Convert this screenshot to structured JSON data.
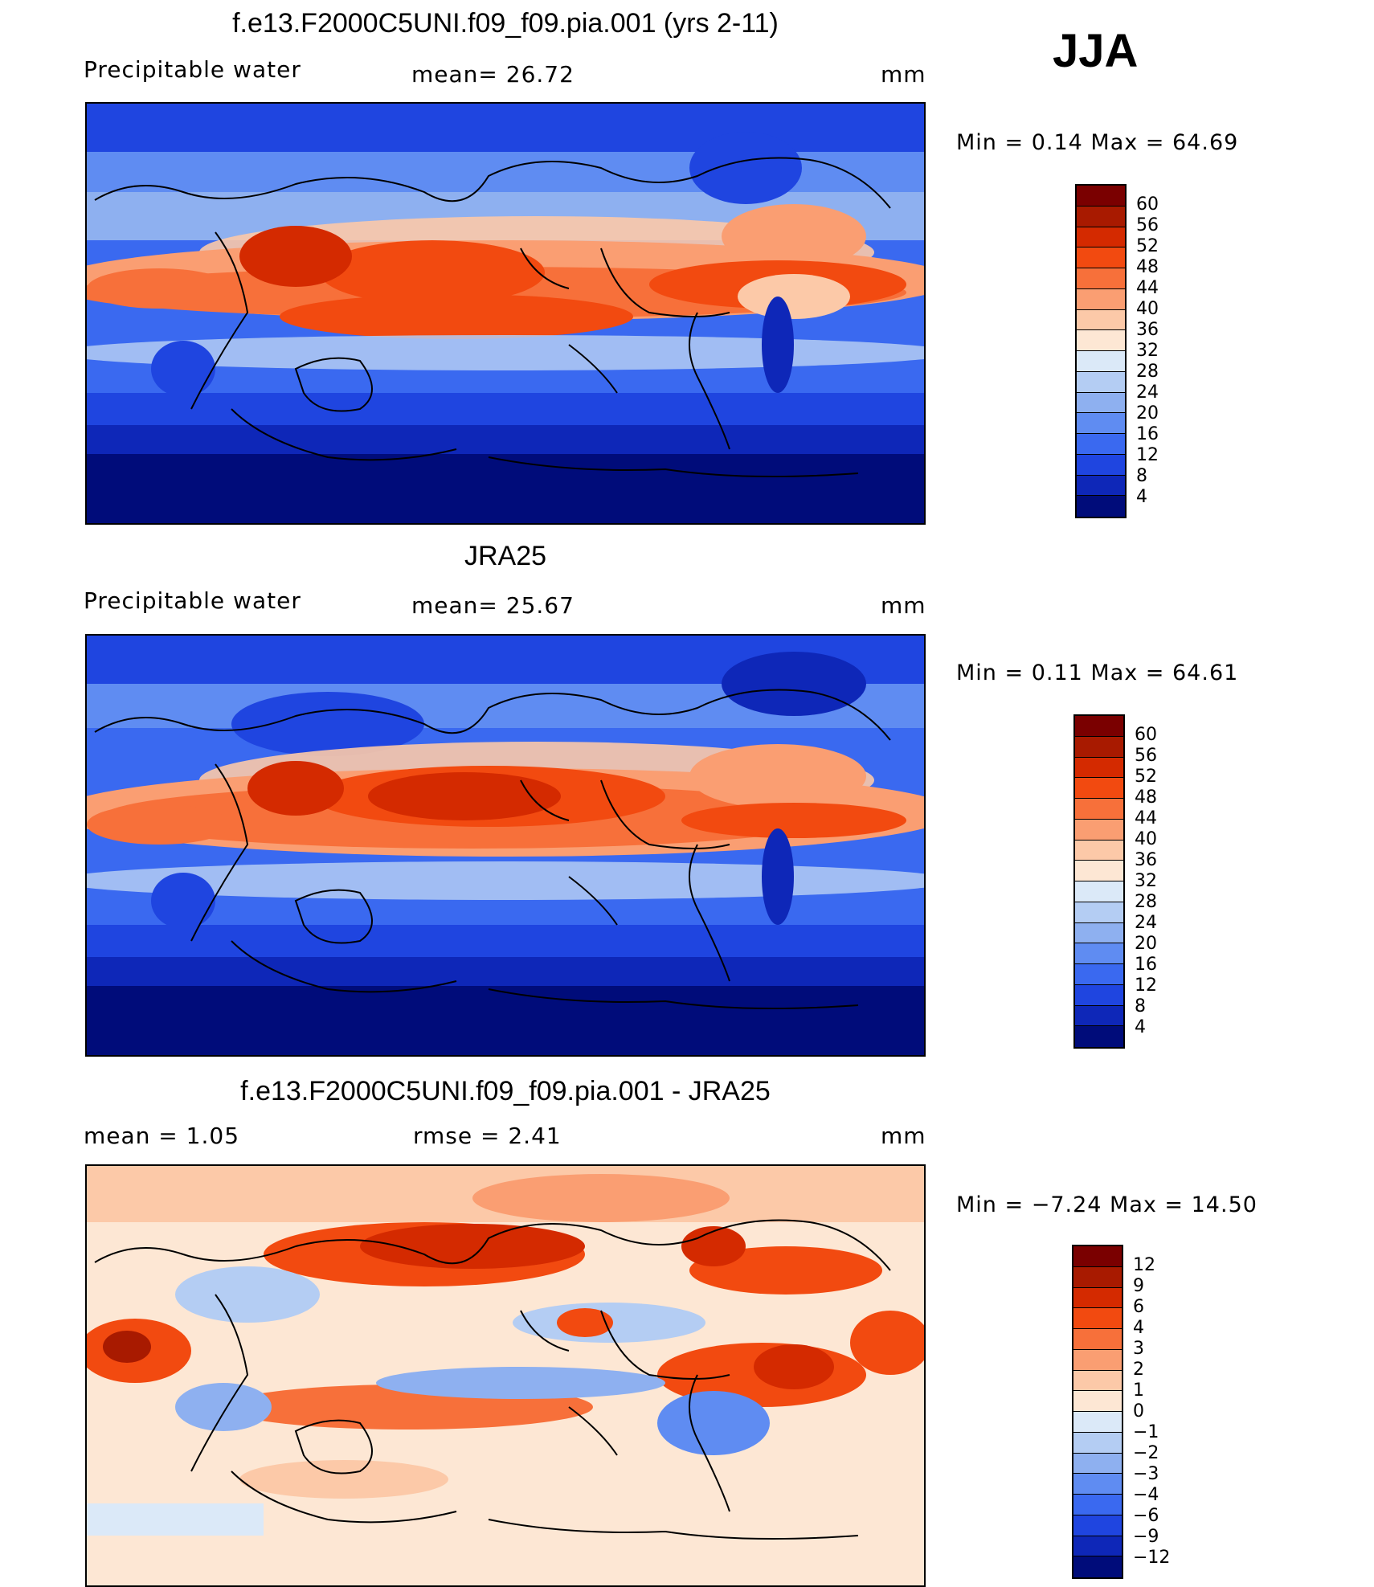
{
  "season": "JJA",
  "panels": [
    {
      "title": "f.e13.F2000C5UNI.f09_f09.pia.001 (yrs 2-11)",
      "left_label": "Precipitable water",
      "mid_label": "mean=  26.72",
      "unit": "mm",
      "min_max": "Min =   0.14  Max =   64.69",
      "levels": [
        "60",
        "56",
        "52",
        "48",
        "44",
        "40",
        "36",
        "32",
        "28",
        "24",
        "20",
        "16",
        "12",
        "8",
        "4"
      ],
      "colors": [
        "#7a0000",
        "#a81a00",
        "#d42a00",
        "#f24a10",
        "#f7703a",
        "#fa9e72",
        "#fcc9a8",
        "#fde7d4",
        "#dbe9f8",
        "#b4cdf3",
        "#8eb0f0",
        "#5f8cf2",
        "#3a69f0",
        "#1f45e0",
        "#0e27b8",
        "#000c7a"
      ]
    },
    {
      "title": "JRA25",
      "left_label": "Precipitable water",
      "mid_label": "mean=  25.67",
      "unit": "mm",
      "min_max": "Min =   0.11  Max =   64.61",
      "levels": [
        "60",
        "56",
        "52",
        "48",
        "44",
        "40",
        "36",
        "32",
        "28",
        "24",
        "20",
        "16",
        "12",
        "8",
        "4"
      ],
      "colors": [
        "#7a0000",
        "#a81a00",
        "#d42a00",
        "#f24a10",
        "#f7703a",
        "#fa9e72",
        "#fcc9a8",
        "#fde7d4",
        "#dbe9f8",
        "#b4cdf3",
        "#8eb0f0",
        "#5f8cf2",
        "#3a69f0",
        "#1f45e0",
        "#0e27b8",
        "#000c7a"
      ]
    },
    {
      "title": "f.e13.F2000C5UNI.f09_f09.pia.001 - JRA25",
      "left_label": "mean =    1.05",
      "mid_label": "rmse =    2.41",
      "unit": "mm",
      "min_max": "Min =  −7.24  Max =   14.50",
      "levels": [
        "12",
        "9",
        "6",
        "4",
        "3",
        "2",
        "1",
        "0",
        "−1",
        "−2",
        "−3",
        "−4",
        "−6",
        "−9",
        "−12"
      ],
      "colors": [
        "#7a0000",
        "#a81a00",
        "#d42a00",
        "#f24a10",
        "#f7703a",
        "#fa9e72",
        "#fcc9a8",
        "#fde7d4",
        "#dbe9f8",
        "#b4cdf3",
        "#8eb0f0",
        "#5f8cf2",
        "#3a69f0",
        "#1f45e0",
        "#0e27b8",
        "#000c7a"
      ]
    }
  ]
}
